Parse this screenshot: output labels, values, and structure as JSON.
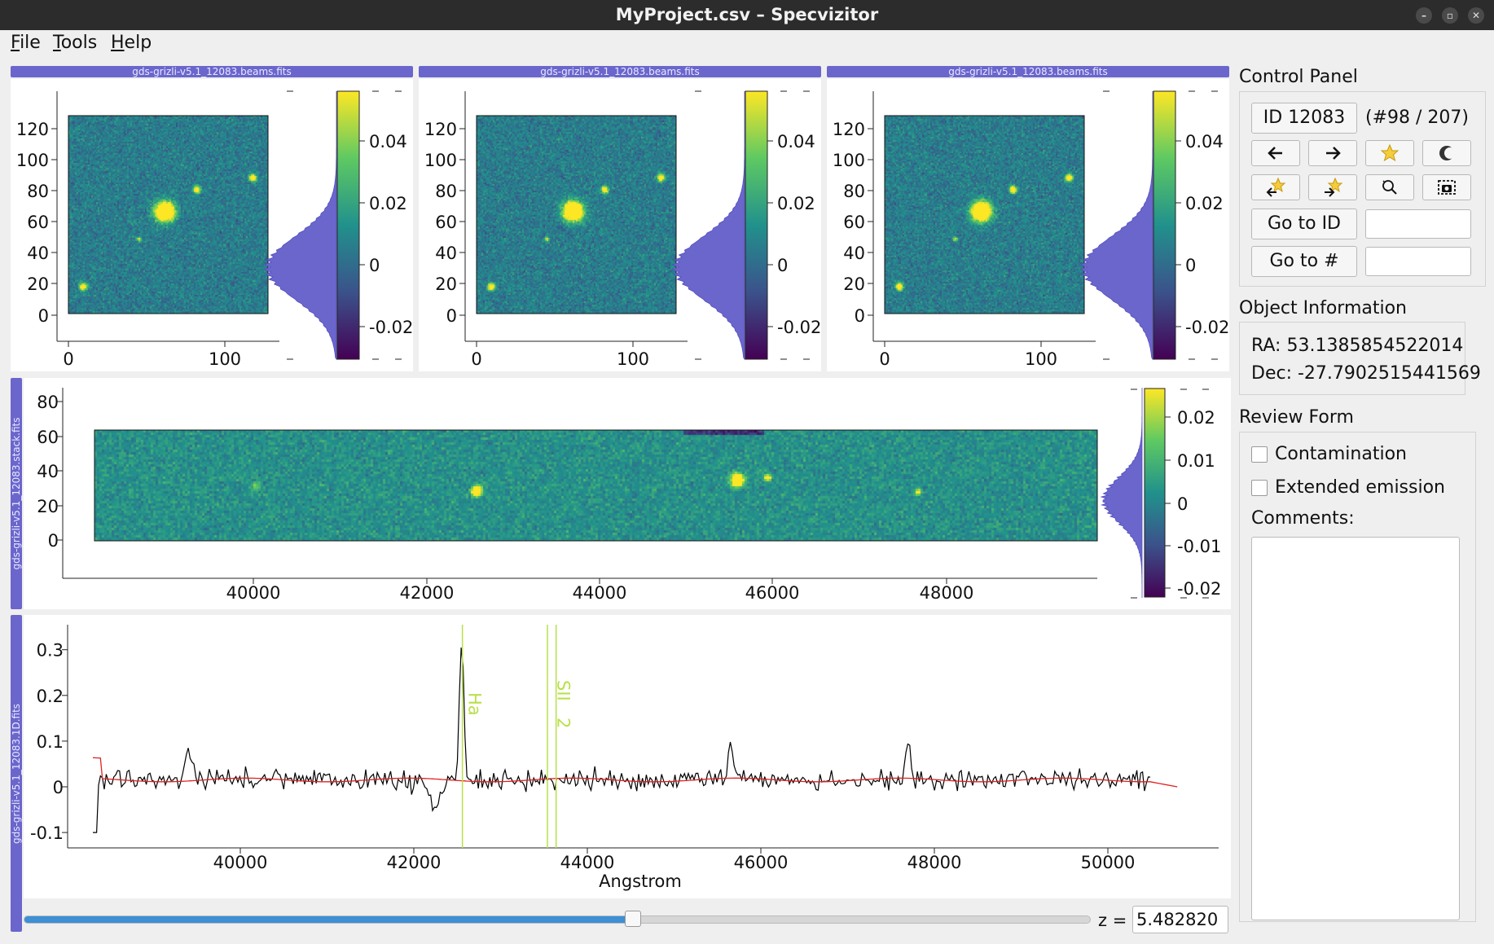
{
  "window": {
    "title": "MyProject.csv – Specvizitor"
  },
  "menu": {
    "file": {
      "u": "F",
      "rest": "ile"
    },
    "tools": {
      "u": "T",
      "rest": "ools"
    },
    "help": {
      "u": "H",
      "rest": "elp"
    }
  },
  "beams": {
    "title": "gds-grizli-v5.1_12083.beams.fits",
    "y_ticks": [
      "120",
      "100",
      "80",
      "60",
      "40",
      "20",
      "0"
    ],
    "x_ticks": [
      "0",
      "100"
    ],
    "cbar_ticks": [
      "0.04",
      "0.02",
      "0",
      "-0.02"
    ]
  },
  "stack": {
    "title": "gds-grizli-v5.1_12083.stack.fits",
    "y_ticks": [
      "80",
      "60",
      "40",
      "20",
      "0"
    ],
    "x_ticks": [
      "40000",
      "42000",
      "44000",
      "46000",
      "48000"
    ],
    "cbar_ticks": [
      "0.02",
      "0.01",
      "0",
      "-0.01",
      "-0.02"
    ]
  },
  "spectrum": {
    "title": "gds-grizli-v5.1_12083.1D.fits",
    "y_ticks": [
      "0.3",
      "0.2",
      "0.1",
      "0",
      "-0.1"
    ],
    "x_ticks": [
      "40000",
      "42000",
      "44000",
      "46000",
      "48000",
      "50000"
    ],
    "xlabel": "Angstrom",
    "line_labels": [
      "Ha",
      "SII"
    ],
    "line_label_extra": "2",
    "line_color": "#b8e04a",
    "flux_color": "#000000",
    "model_color": "#e02020"
  },
  "redshift": {
    "label": "z =",
    "value": "5.482820",
    "slider_fraction": 0.57
  },
  "control_panel": {
    "title": "Control Panel",
    "id_button": "ID 12083",
    "position": "(#98 / 207)",
    "goto_id": "Go to ID",
    "goto_num": "Go to #",
    "icons": [
      "arrow-left-icon",
      "arrow-right-icon",
      "star-icon",
      "dark-mode-icon",
      "prev-starred-icon",
      "next-starred-icon",
      "reset-view-icon",
      "screenshot-icon"
    ]
  },
  "object_info": {
    "title": "Object Information",
    "ra": "RA: 53.1385854522014",
    "dec": "Dec: -27.7902515441569"
  },
  "review_form": {
    "title": "Review Form",
    "contamination": "Contamination",
    "extended": "Extended emission",
    "comments": "Comments:"
  },
  "colors": {
    "accent": "#6a66cc",
    "slider": "#3d8fd6"
  }
}
